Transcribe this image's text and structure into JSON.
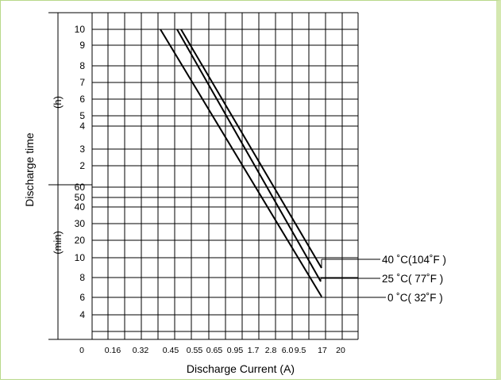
{
  "chart_data": {
    "type": "line",
    "title": "",
    "xlabel": "Discharge Current (A)",
    "ylabel": "Discharge time",
    "y_unit_hours": "(h)",
    "y_unit_minutes": "(min)",
    "x_ticks": [
      "0",
      "0.16",
      "0.32",
      "0.45",
      "0.55",
      "0.65",
      "0.95",
      "1.7",
      "2.8",
      "6.0",
      "9.5",
      "17",
      "20"
    ],
    "y_ticks_hours": [
      "10",
      "9",
      "8",
      "7",
      "6",
      "5",
      "4",
      "3",
      "2"
    ],
    "y_ticks_minutes": [
      "60",
      "50",
      "40",
      "30",
      "20",
      "10",
      "8",
      "6",
      "4"
    ],
    "series": [
      {
        "name": "40 ˚C(104˚F )",
        "points": [
          {
            "x": "0.515",
            "y": "10 h"
          },
          {
            "x": "17",
            "y": "9.5 min"
          }
        ]
      },
      {
        "name": "25 ˚C( 77˚F )",
        "points": [
          {
            "x": "0.49",
            "y": "10 h"
          },
          {
            "x": "17",
            "y": "8.3 min"
          }
        ]
      },
      {
        "name": "0 ˚C( 32˚F )",
        "points": [
          {
            "x": "0.40",
            "y": "10 h"
          },
          {
            "x": "17",
            "y": "6 min"
          }
        ]
      }
    ],
    "grid": true,
    "legend": "right"
  }
}
